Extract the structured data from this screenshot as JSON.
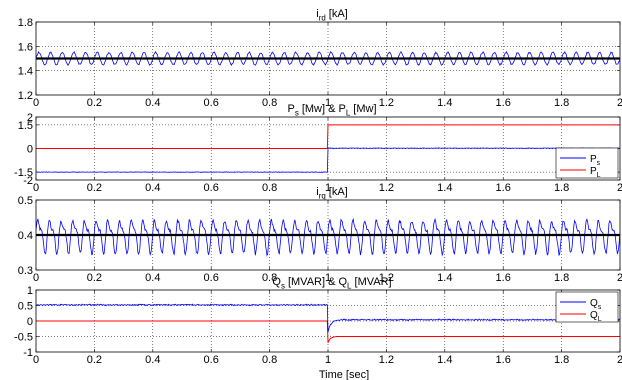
{
  "chart_data": [
    {
      "type": "line",
      "title": "i_rd [kA]",
      "title_main": "i",
      "title_sub": "rd",
      "title_rest": " [kA]",
      "xlim": [
        0,
        2
      ],
      "ylim": [
        1.2,
        1.8
      ],
      "x_ticks": [
        "0",
        "0.2",
        "0.4",
        "0.6",
        "0.8",
        "1",
        "1.2",
        "1.4",
        "1.6",
        "1.8",
        "2"
      ],
      "y_ticks": [
        "1.2",
        "1.4",
        "1.6",
        "1.8"
      ],
      "y_tick_values": [
        1.2,
        1.4,
        1.6,
        1.8
      ],
      "grid": true,
      "series": [
        {
          "kind": "oscillation",
          "color": "#0000ff",
          "width": 0.8,
          "mean": 1.5,
          "amp": 0.05,
          "cycles": 50
        },
        {
          "kind": "constant",
          "color": "#000000",
          "width": 2.2,
          "value": 1.5
        }
      ]
    },
    {
      "type": "line",
      "title": "P_s [Mw] & P_L [Mw]",
      "title_main": "P",
      "title_sub": "s",
      "title_rest": " [Mw] & P",
      "title_sub2": "L",
      "title_rest2": " [Mw]",
      "xlim": [
        0,
        2
      ],
      "ylim": [
        -2,
        2
      ],
      "x_ticks": [
        "0",
        "0.2",
        "0.4",
        "0.6",
        "0.8",
        "1",
        "1.2",
        "1.4",
        "1.6",
        "1.8",
        "2"
      ],
      "y_ticks": [
        "-2",
        "-1.5",
        "0",
        "1.5",
        "2"
      ],
      "y_tick_values": [
        -2,
        -1.5,
        0,
        1.5,
        2
      ],
      "grid": true,
      "legend": {
        "placement": "bottom-right",
        "entries": [
          {
            "main": "P",
            "sub": "s",
            "color": "#0000ff"
          },
          {
            "main": "P",
            "sub": "L",
            "color": "#ff0000"
          }
        ]
      },
      "series": [
        {
          "kind": "step",
          "color": "#ff0000",
          "width": 1,
          "before": 0,
          "after": 1.5,
          "t_step": 1.0
        },
        {
          "kind": "step_noisy",
          "color": "#0000ff",
          "width": 0.8,
          "before": -1.5,
          "after": 0.02,
          "t_step": 1.0,
          "noise": 0.02
        }
      ]
    },
    {
      "type": "line",
      "title": "i_rq [kA]",
      "title_main": "i",
      "title_sub": "rq",
      "title_rest": " [kA]",
      "xlim": [
        0,
        2
      ],
      "ylim": [
        0.3,
        0.5
      ],
      "x_ticks": [
        "0",
        "0.2",
        "0.4",
        "0.6",
        "0.8",
        "1",
        "1.2",
        "1.4",
        "1.6",
        "1.8",
        "2"
      ],
      "y_ticks": [
        "0.3",
        "0.4",
        "0.5"
      ],
      "y_tick_values": [
        0.3,
        0.4,
        0.5
      ],
      "grid": true,
      "series": [
        {
          "kind": "oscillation",
          "color": "#0000ff",
          "width": 0.8,
          "mean": 0.4,
          "amp": 0.04,
          "cycles": 50,
          "harmonic": 0.4
        },
        {
          "kind": "constant",
          "color": "#000000",
          "width": 2.2,
          "value": 0.4
        }
      ]
    },
    {
      "type": "line",
      "title": "Q_s [MVAR] & Q_L [MVAR]",
      "title_main": "Q",
      "title_sub": "s",
      "title_rest": " [MVAR] & Q",
      "title_sub2": "L",
      "title_rest2": " [MVAR]",
      "xlim": [
        0,
        2
      ],
      "ylim": [
        -1,
        1
      ],
      "x_ticks": [
        "0",
        "0.2",
        "0.4",
        "0.6",
        "0.8",
        "1",
        "1.2",
        "1.4",
        "1.6",
        "1.8",
        "2"
      ],
      "y_ticks": [
        "-1",
        "-0.5",
        "0",
        "0.5",
        "1"
      ],
      "y_tick_values": [
        -1,
        -0.5,
        0,
        0.5,
        1
      ],
      "grid": true,
      "xlabel": "Time [sec]",
      "legend": {
        "placement": "top-right",
        "entries": [
          {
            "main": "Q",
            "sub": "s",
            "color": "#0000ff"
          },
          {
            "main": "Q",
            "sub": "L",
            "color": "#ff0000"
          }
        ]
      },
      "series": [
        {
          "kind": "step",
          "color": "#ff0000",
          "width": 1,
          "before": 0,
          "after": -0.5,
          "t_step": 1.0,
          "transient": -0.2
        },
        {
          "kind": "step_noisy",
          "color": "#0000ff",
          "width": 0.8,
          "before": 0.52,
          "after": 0.04,
          "t_step": 1.0,
          "noise": 0.025,
          "transient": -0.4
        }
      ]
    }
  ]
}
